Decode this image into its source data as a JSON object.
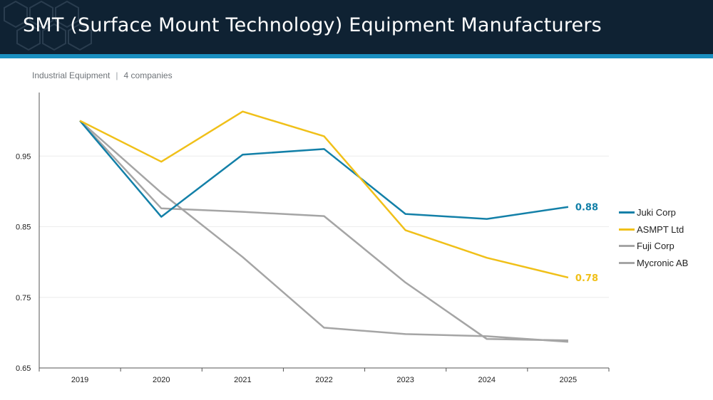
{
  "header": {
    "title": "SMT (Surface Mount Technology) Equipment Manufacturers"
  },
  "subtitle": {
    "category": "Industrial Equipment",
    "separator": "|",
    "count": "4 companies"
  },
  "colors": {
    "header_bg": "#0f2233",
    "header_band": "#1a8fc0",
    "juki": "#1380a8",
    "asmpt": "#f0c019",
    "grey": "#a5a5a5"
  },
  "chart_data": {
    "type": "line",
    "categories": [
      "2019",
      "2020",
      "2021",
      "2022",
      "2023",
      "2024",
      "2025"
    ],
    "ylim": [
      0.65,
      1.05
    ],
    "yticks": [
      0.65,
      0.75,
      0.85,
      0.95
    ],
    "ytick_labels": [
      "0.65",
      "0.75",
      "0.85",
      "0.95"
    ],
    "grid": true,
    "legend_position": "right",
    "series": [
      {
        "name": "Juki Corp",
        "color": "#1380a8",
        "values": [
          1.0,
          0.864,
          0.952,
          0.96,
          0.868,
          0.861,
          0.878
        ],
        "end_label": "0.88"
      },
      {
        "name": "ASMPT Ltd",
        "color": "#f0c019",
        "values": [
          1.0,
          0.942,
          1.013,
          0.978,
          0.845,
          0.806,
          0.778
        ],
        "end_label": "0.78"
      },
      {
        "name": "Fuji Corp",
        "color": "#a5a5a5",
        "values": [
          1.0,
          0.876,
          0.871,
          0.865,
          0.771,
          0.691,
          0.689
        ],
        "end_label": ""
      },
      {
        "name": "Mycronic AB",
        "color": "#a5a5a5",
        "values": [
          1.0,
          0.898,
          0.807,
          0.707,
          0.698,
          0.695,
          0.687
        ],
        "end_label": ""
      }
    ]
  }
}
